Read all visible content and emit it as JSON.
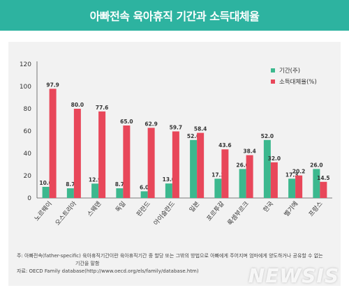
{
  "title": "아빠전속 육아휴직 기간과 소득대체율",
  "chart_data": {
    "type": "bar",
    "title": "",
    "xlabel": "",
    "ylabel": "",
    "ylim": [
      0,
      120
    ],
    "yticks": [
      0,
      20,
      40,
      60,
      80,
      100,
      120
    ],
    "grid": false,
    "legend_position": "top-right",
    "categories": [
      "노르웨이",
      "오스트리아",
      "스웨덴",
      "독일",
      "핀란드",
      "아이슬란드",
      "일본",
      "포르투갈",
      "룩셈부르크",
      "한국",
      "벨기에",
      "프랑스"
    ],
    "series": [
      {
        "name": "기간(주)",
        "color": "#3cb88e",
        "values": [
          10.0,
          8.7,
          12.9,
          8.7,
          6.0,
          13.0,
          52.0,
          17.3,
          26.0,
          52.0,
          17.3,
          26.0
        ]
      },
      {
        "name": "소득대체율(%)",
        "color": "#e8475a",
        "values": [
          97.9,
          80.0,
          77.6,
          65.0,
          62.9,
          59.7,
          58.4,
          43.6,
          38.4,
          32.0,
          20.2,
          14.5
        ]
      }
    ]
  },
  "footnote": {
    "line1": "주: 아빠전속(father-specific) 육아휴직기간이란 육아휴직기간 중 할당 또는 그밖의 방법으로 아빠에게 주어지며 엄마에게 양도하거나 공유할 수 없는",
    "line2": "기간을 말함",
    "line3": "자료: OECD Family database(http://www.oecd.org/els/family/database.htm)"
  },
  "watermark": "NEWSIS"
}
